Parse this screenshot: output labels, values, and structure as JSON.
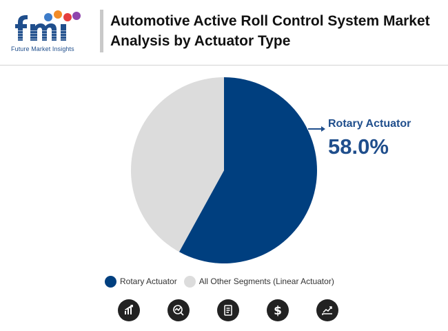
{
  "logo": {
    "letters": "fmi",
    "caption": "Future Market Insights"
  },
  "header": {
    "title": "Automotive Active Roll Control System Market Analysis by Actuator Type"
  },
  "chart_data": {
    "type": "pie",
    "title": "",
    "slices": [
      {
        "label": "Rotary Actuator",
        "value": 58.0,
        "color": "#003f7f"
      },
      {
        "label": "All Other Segments (Linear Actuator)",
        "value": 42.0,
        "color": "#dcdcdc"
      }
    ],
    "start_angle_deg": 0,
    "direction": "clockwise",
    "legend": "bottom",
    "callout": {
      "label": "Rotary Actuator",
      "value": "58.0%"
    }
  },
  "legend": {
    "items": [
      {
        "label": "Rotary Actuator",
        "color": "#003f7f"
      },
      {
        "label": "All Other Segments (Linear Actuator)",
        "color": "#dcdcdc"
      }
    ]
  },
  "footer_icons": [
    "bar-chart-icon",
    "market-analysis-icon",
    "report-document-icon",
    "dollar-icon",
    "growth-chart-icon"
  ]
}
